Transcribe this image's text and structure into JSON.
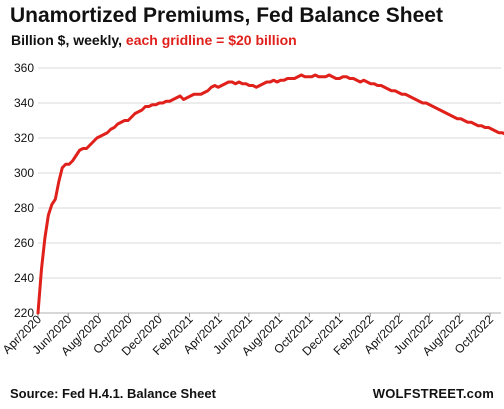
{
  "header": {
    "title": "Unamortized  Premiums,  Fed Balance Sheet",
    "subtitle_main": "Billion $, weekly, ",
    "subtitle_accent": "each gridline = $20 billion"
  },
  "footer": {
    "source": "Source: Fed H.4.1. Balance Sheet",
    "brand": "WOLFSTREET.com"
  },
  "colors": {
    "line": "#e0201b",
    "accent": "#e0201b",
    "grid": "#d9d9d9",
    "text": "#111111"
  },
  "chart_data": {
    "type": "line",
    "title": "Unamortized  Premiums,  Fed Balance Sheet",
    "subtitle": "Billion $, weekly, each gridline = $20 billion",
    "ylim": [
      220,
      360
    ],
    "y_ticks": [
      220,
      240,
      260,
      280,
      300,
      320,
      340,
      360
    ],
    "grid": true,
    "x_ticks": [
      {
        "label": "Apr/2020",
        "x": "2020-04-01"
      },
      {
        "label": "Jun/2020",
        "x": "2020-06-01"
      },
      {
        "label": "Aug/2020",
        "x": "2020-08-01"
      },
      {
        "label": "Oct/2020",
        "x": "2020-10-01"
      },
      {
        "label": "Dec/2020",
        "x": "2020-12-01"
      },
      {
        "label": "Feb/2021",
        "x": "2021-02-01"
      },
      {
        "label": "Apr/2021",
        "x": "2021-04-01"
      },
      {
        "label": "Jun/2021",
        "x": "2021-06-01"
      },
      {
        "label": "Aug/2021",
        "x": "2021-08-01"
      },
      {
        "label": "Oct/2021",
        "x": "2021-10-01"
      },
      {
        "label": "Dec/2021",
        "x": "2021-12-01"
      },
      {
        "label": "Feb/2022",
        "x": "2022-02-01"
      },
      {
        "label": "Apr/2022",
        "x": "2022-04-01"
      },
      {
        "label": "Jun/2022",
        "x": "2022-06-01"
      },
      {
        "label": "Aug/2022",
        "x": "2022-08-01"
      },
      {
        "label": "Oct/2022",
        "x": "2022-10-01"
      }
    ],
    "series": [
      {
        "name": "",
        "points": [
          [
            "2020-04-01",
            220
          ],
          [
            "2020-04-08",
            245
          ],
          [
            "2020-04-15",
            263
          ],
          [
            "2020-04-22",
            276
          ],
          [
            "2020-04-29",
            282
          ],
          [
            "2020-05-06",
            285
          ],
          [
            "2020-05-13",
            295
          ],
          [
            "2020-05-20",
            303
          ],
          [
            "2020-05-27",
            305
          ],
          [
            "2020-06-03",
            305
          ],
          [
            "2020-06-10",
            307
          ],
          [
            "2020-06-17",
            310
          ],
          [
            "2020-06-24",
            313
          ],
          [
            "2020-07-01",
            314
          ],
          [
            "2020-07-08",
            314
          ],
          [
            "2020-07-15",
            316
          ],
          [
            "2020-07-22",
            318
          ],
          [
            "2020-07-29",
            320
          ],
          [
            "2020-08-05",
            321
          ],
          [
            "2020-08-12",
            322
          ],
          [
            "2020-08-19",
            323
          ],
          [
            "2020-08-26",
            325
          ],
          [
            "2020-09-02",
            326
          ],
          [
            "2020-09-09",
            328
          ],
          [
            "2020-09-16",
            329
          ],
          [
            "2020-09-23",
            330
          ],
          [
            "2020-09-30",
            330
          ],
          [
            "2020-10-07",
            332
          ],
          [
            "2020-10-14",
            334
          ],
          [
            "2020-10-21",
            335
          ],
          [
            "2020-10-28",
            336
          ],
          [
            "2020-11-04",
            338
          ],
          [
            "2020-11-11",
            338
          ],
          [
            "2020-11-18",
            339
          ],
          [
            "2020-11-25",
            339
          ],
          [
            "2020-12-02",
            340
          ],
          [
            "2020-12-09",
            340
          ],
          [
            "2020-12-16",
            341
          ],
          [
            "2020-12-23",
            341
          ],
          [
            "2020-12-30",
            342
          ],
          [
            "2021-01-06",
            343
          ],
          [
            "2021-01-13",
            344
          ],
          [
            "2021-01-20",
            342
          ],
          [
            "2021-01-27",
            343
          ],
          [
            "2021-02-03",
            344
          ],
          [
            "2021-02-10",
            345
          ],
          [
            "2021-02-17",
            345
          ],
          [
            "2021-02-24",
            345
          ],
          [
            "2021-03-03",
            346
          ],
          [
            "2021-03-10",
            347
          ],
          [
            "2021-03-17",
            349
          ],
          [
            "2021-03-24",
            350
          ],
          [
            "2021-03-31",
            349
          ],
          [
            "2021-04-07",
            350
          ],
          [
            "2021-04-14",
            351
          ],
          [
            "2021-04-21",
            352
          ],
          [
            "2021-04-28",
            352
          ],
          [
            "2021-05-05",
            351
          ],
          [
            "2021-05-12",
            352
          ],
          [
            "2021-05-19",
            351
          ],
          [
            "2021-05-26",
            351
          ],
          [
            "2021-06-02",
            350
          ],
          [
            "2021-06-09",
            350
          ],
          [
            "2021-06-16",
            349
          ],
          [
            "2021-06-23",
            350
          ],
          [
            "2021-06-30",
            351
          ],
          [
            "2021-07-07",
            352
          ],
          [
            "2021-07-14",
            352
          ],
          [
            "2021-07-21",
            353
          ],
          [
            "2021-07-28",
            352
          ],
          [
            "2021-08-04",
            353
          ],
          [
            "2021-08-11",
            353
          ],
          [
            "2021-08-18",
            354
          ],
          [
            "2021-08-25",
            354
          ],
          [
            "2021-09-01",
            354
          ],
          [
            "2021-09-08",
            355
          ],
          [
            "2021-09-15",
            356
          ],
          [
            "2021-09-22",
            355
          ],
          [
            "2021-09-29",
            355
          ],
          [
            "2021-10-06",
            355
          ],
          [
            "2021-10-13",
            356
          ],
          [
            "2021-10-20",
            355
          ],
          [
            "2021-10-27",
            355
          ],
          [
            "2021-11-03",
            355
          ],
          [
            "2021-11-10",
            356
          ],
          [
            "2021-11-17",
            355
          ],
          [
            "2021-11-24",
            354
          ],
          [
            "2021-12-01",
            354
          ],
          [
            "2021-12-08",
            355
          ],
          [
            "2021-12-15",
            355
          ],
          [
            "2021-12-22",
            354
          ],
          [
            "2021-12-29",
            354
          ],
          [
            "2022-01-05",
            353
          ],
          [
            "2022-01-12",
            352
          ],
          [
            "2022-01-19",
            353
          ],
          [
            "2022-01-26",
            352
          ],
          [
            "2022-02-02",
            351
          ],
          [
            "2022-02-09",
            351
          ],
          [
            "2022-02-16",
            350
          ],
          [
            "2022-02-23",
            350
          ],
          [
            "2022-03-02",
            349
          ],
          [
            "2022-03-09",
            348
          ],
          [
            "2022-03-16",
            347
          ],
          [
            "2022-03-23",
            347
          ],
          [
            "2022-03-30",
            346
          ],
          [
            "2022-04-06",
            345
          ],
          [
            "2022-04-13",
            345
          ],
          [
            "2022-04-20",
            344
          ],
          [
            "2022-04-27",
            343
          ],
          [
            "2022-05-04",
            342
          ],
          [
            "2022-05-11",
            341
          ],
          [
            "2022-05-18",
            340
          ],
          [
            "2022-05-25",
            340
          ],
          [
            "2022-06-01",
            339
          ],
          [
            "2022-06-08",
            338
          ],
          [
            "2022-06-15",
            337
          ],
          [
            "2022-06-22",
            336
          ],
          [
            "2022-06-29",
            335
          ],
          [
            "2022-07-06",
            334
          ],
          [
            "2022-07-13",
            333
          ],
          [
            "2022-07-20",
            332
          ],
          [
            "2022-07-27",
            331
          ],
          [
            "2022-08-03",
            331
          ],
          [
            "2022-08-10",
            330
          ],
          [
            "2022-08-17",
            329
          ],
          [
            "2022-08-24",
            329
          ],
          [
            "2022-08-31",
            328
          ],
          [
            "2022-09-07",
            327
          ],
          [
            "2022-09-14",
            327
          ],
          [
            "2022-09-21",
            326
          ],
          [
            "2022-09-28",
            326
          ],
          [
            "2022-10-05",
            325
          ],
          [
            "2022-10-12",
            324
          ],
          [
            "2022-10-19",
            323
          ],
          [
            "2022-10-26",
            323
          ],
          [
            "2022-11-02",
            322
          ]
        ]
      }
    ]
  }
}
